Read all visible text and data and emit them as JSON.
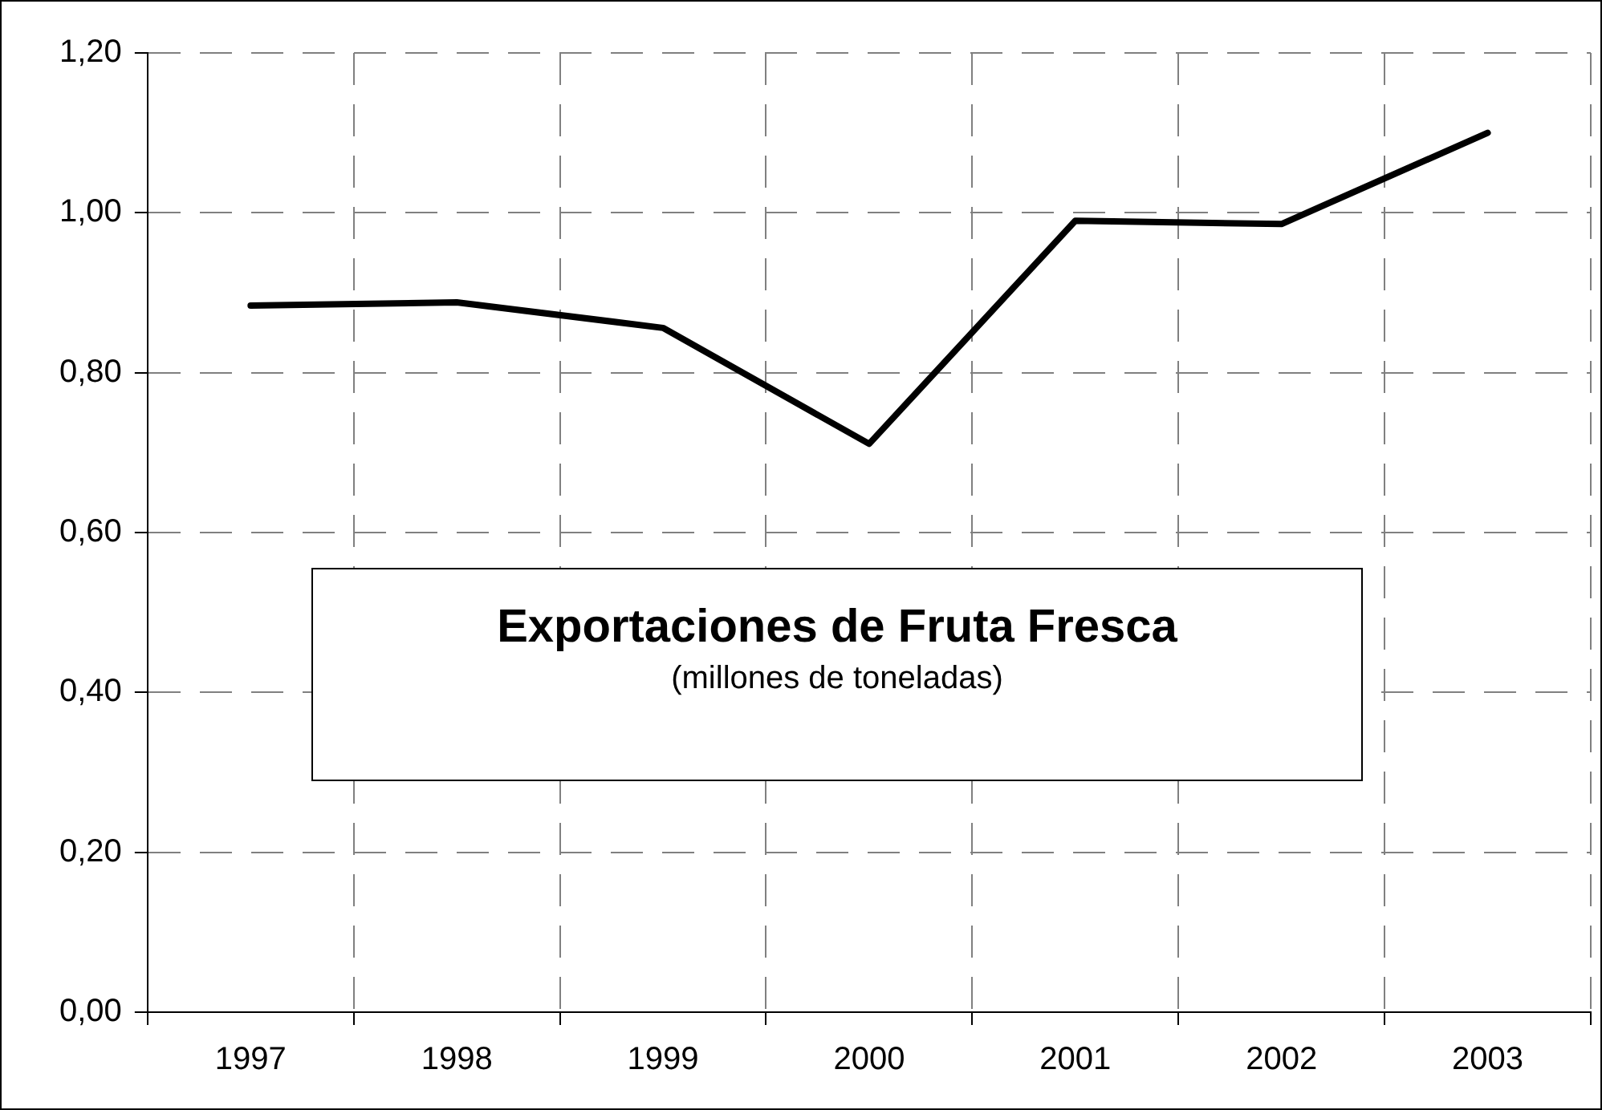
{
  "chart_data": {
    "type": "line",
    "title": "Exportaciones de Fruta Fresca",
    "subtitle": "(millones de toneladas)",
    "categories": [
      "1997",
      "1998",
      "1999",
      "2000",
      "2001",
      "2002",
      "2003"
    ],
    "series": [
      {
        "color": "#000000",
        "values": [
          0.884,
          0.888,
          0.856,
          0.711,
          0.99,
          0.986,
          1.1
        ]
      }
    ],
    "ylim": [
      0,
      1.2
    ],
    "yticks": [
      {
        "value": 0,
        "label": "0,00"
      },
      {
        "value": 0.2,
        "label": "0,20"
      },
      {
        "value": 0.4,
        "label": "0,40"
      },
      {
        "value": 0.6,
        "label": "0,60"
      },
      {
        "value": 0.8,
        "label": "0,80"
      },
      {
        "value": 1,
        "label": "1,00"
      },
      {
        "value": 1.2,
        "label": "1,20"
      }
    ],
    "grid": true,
    "legend": false,
    "marker": "none",
    "line_style": "solid"
  }
}
